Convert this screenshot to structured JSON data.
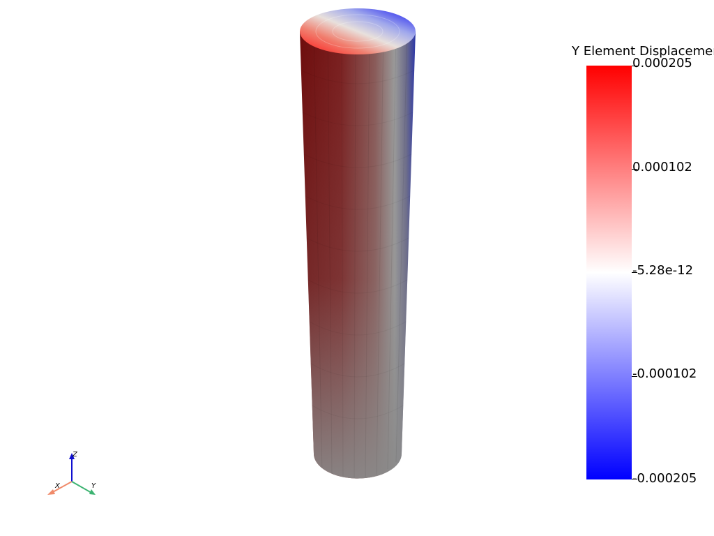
{
  "scalar_bar": {
    "title": "Y Element Displacemer",
    "ticks": [
      {
        "label": "0.000205",
        "value": 0.000205
      },
      {
        "label": "0.000102",
        "value": 0.000102
      },
      {
        "label": "-5.28e-12",
        "value": -5.28e-12
      },
      {
        "label": "-0.000102",
        "value": -0.000102
      },
      {
        "label": "-0.000205",
        "value": -0.000205
      }
    ],
    "range": [
      -0.000205,
      0.000205
    ],
    "colormap": {
      "low": "#0000ff",
      "mid": "#ffffff",
      "high": "#ff0000"
    }
  },
  "orientation_axes": {
    "x_label": "X",
    "y_label": "Y",
    "z_label": "Z",
    "colors": {
      "x": "#f08a6a",
      "y": "#3cb371",
      "z": "#1010d0"
    }
  },
  "colors": {
    "background": "#ffffff",
    "cylinder_shadow_red": "#7a1010",
    "cylinder_mid_gray": "#8a8a8a",
    "cylinder_blue_edge": "#4050a0"
  }
}
